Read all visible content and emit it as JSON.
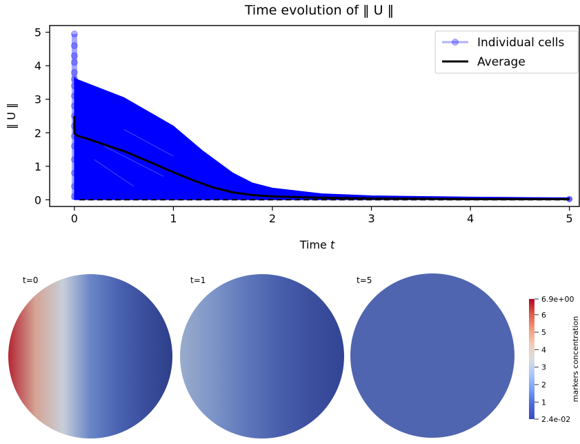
{
  "chart_data": [
    {
      "type": "line",
      "title": "Time evolution of  ‖ U ‖",
      "xlabel_text": "Time ",
      "xlabel_var": "t",
      "ylabel": "‖ U ‖",
      "xlim": [
        -0.25,
        5.1
      ],
      "ylim": [
        -0.2,
        5.2
      ],
      "xticks": [
        0,
        1,
        2,
        3,
        4,
        5
      ],
      "yticks": [
        0,
        1,
        2,
        3,
        4,
        5
      ],
      "legend": {
        "placement": "top-right",
        "entries": [
          "Individual cells",
          "Average"
        ]
      },
      "series": [
        {
          "name": "Average",
          "color": "#000000",
          "x": [
            0,
            0,
            0.02,
            0.1,
            0.2,
            0.3,
            0.4,
            0.5,
            0.6,
            0.7,
            0.8,
            0.9,
            1.0,
            1.2,
            1.4,
            1.6,
            1.8,
            2.0,
            2.5,
            3.0,
            3.5,
            4.0,
            4.5,
            5.0
          ],
          "y": [
            2.5,
            2.0,
            1.92,
            1.85,
            1.75,
            1.65,
            1.55,
            1.45,
            1.33,
            1.2,
            1.08,
            0.95,
            0.82,
            0.58,
            0.37,
            0.22,
            0.14,
            0.1,
            0.06,
            0.04,
            0.03,
            0.02,
            0.02,
            0.02
          ]
        },
        {
          "name": "Individual cells",
          "color": "#0000ff",
          "upper_x": [
            0,
            0.02,
            0.5,
            1.0,
            1.3,
            1.6,
            1.8,
            2.0,
            2.5,
            3.0,
            3.5,
            4.0,
            4.5,
            5.0
          ],
          "upper_y": [
            3.65,
            3.6,
            3.05,
            2.2,
            1.45,
            0.8,
            0.5,
            0.35,
            0.18,
            0.12,
            0.1,
            0.08,
            0.07,
            0.06
          ],
          "lower_y": 0,
          "initial_markers_y": [
            4.95,
            4.6,
            4.3,
            4.1,
            3.8,
            3.6,
            3.4,
            3.1,
            2.8,
            2.5,
            2.2,
            1.9,
            1.6,
            1.2,
            0.8,
            0.4,
            0.1
          ]
        }
      ]
    },
    {
      "type": "heatmap",
      "panels": [
        {
          "label": "t=0",
          "colors": [
            "#b52634",
            "#d4a494",
            "#c8cfda",
            "#6a86c6",
            "#4a63b2",
            "#3a4e9c",
            "#2e3f8a"
          ]
        },
        {
          "label": "t=1",
          "colors": [
            "#9aaccc",
            "#7d95c8",
            "#5f78bb",
            "#4860ad",
            "#3c4f9e",
            "#324494"
          ]
        },
        {
          "label": "t=5",
          "colors": [
            "#5065b0",
            "#5065b0"
          ]
        }
      ],
      "colorbar": {
        "title": "markers concentration",
        "max_label": "6.9e+00",
        "min_label": "2.4e-02",
        "tick_labels": [
          "6",
          "5",
          "4",
          "3",
          "2",
          "1"
        ],
        "tick_values": [
          6,
          5,
          4,
          3,
          2,
          1
        ],
        "range": [
          0.024,
          6.9
        ],
        "colors": [
          "#b40426",
          "#dc5d4a",
          "#f49a7b",
          "#f2cbb7",
          "#dddcdc",
          "#aac7fd",
          "#7b9ff9",
          "#4f69d9",
          "#3b4cc0"
        ]
      }
    }
  ]
}
